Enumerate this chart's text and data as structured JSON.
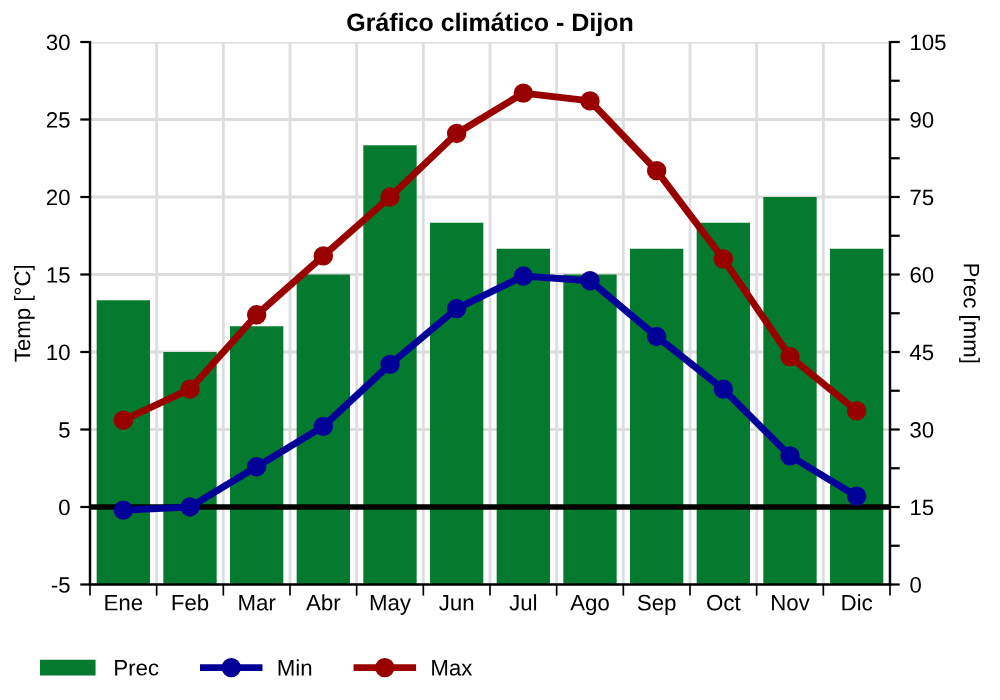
{
  "chart_data": {
    "type": "bar",
    "title": "Gráfico climático - Dijon",
    "ylabel": "Temp [°C]",
    "y2label": "Prec [mm]",
    "categories": [
      "Ene",
      "Feb",
      "Mar",
      "Abr",
      "May",
      "Jun",
      "Jul",
      "Ago",
      "Sep",
      "Oct",
      "Nov",
      "Dic"
    ],
    "series": [
      {
        "name": "Prec",
        "type": "bar",
        "axis": "y2",
        "color": "#047a2f",
        "values": [
          55,
          45,
          50,
          60,
          85,
          70,
          65,
          60,
          65,
          70,
          75,
          65
        ]
      },
      {
        "name": "Min",
        "type": "line",
        "color": "#000099",
        "values": [
          -0.2,
          0,
          2.6,
          5.2,
          9.2,
          12.8,
          14.9,
          14.6,
          11.0,
          7.6,
          3.3,
          0.7
        ]
      },
      {
        "name": "Max",
        "type": "line",
        "color": "#990000",
        "values": [
          5.6,
          7.6,
          12.4,
          16.2,
          20,
          24.1,
          26.7,
          26.2,
          21.7,
          16.0,
          9.7,
          6.2
        ]
      }
    ],
    "ylim": [
      -5,
      30
    ],
    "yticks": [
      -5,
      0,
      5,
      10,
      15,
      20,
      25,
      30
    ],
    "y2lim": [
      0,
      105
    ],
    "y2ticks": [
      0,
      {
        "value": 7.5,
        "label": null
      },
      15,
      {
        "value": 22.5,
        "label": null
      },
      30,
      {
        "value": 37.5,
        "label": null
      },
      45,
      {
        "value": 52.5,
        "label": null
      },
      60,
      {
        "value": 67.5,
        "label": null
      },
      75,
      {
        "value": 82.5,
        "label": null
      },
      90,
      {
        "value": 97.5,
        "label": null
      },
      105
    ],
    "ref_lines": [
      {
        "axis": "y",
        "value": 0,
        "color": "#000000"
      }
    ],
    "grid": true,
    "legend": "bottom left",
    "marker": "circle",
    "line_style": "solid"
  }
}
